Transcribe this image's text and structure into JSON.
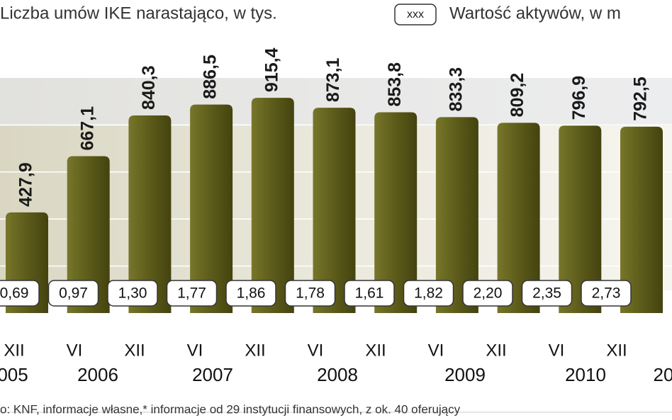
{
  "chart_data": {
    "type": "bar",
    "title": "Liczba umów IKE narastająco, w tys.",
    "legend_sample": "xxx",
    "legend_label": "Wartość aktywów, w m",
    "categories": [
      "XII",
      "VI",
      "XII",
      "VI",
      "XII",
      "VI",
      "XII",
      "VI",
      "XII",
      "VI",
      "XII"
    ],
    "values": [
      427.9,
      667.1,
      840.3,
      886.5,
      915.4,
      873.1,
      853.8,
      833.3,
      809.2,
      796.9,
      792.5
    ],
    "value_labels": [
      "427,9",
      "667,1",
      "840,3",
      "886,5",
      "915,4",
      "873,1",
      "853,8",
      "833,3",
      "809,2",
      "796,9",
      "792,5"
    ],
    "color": "#5c5b1a",
    "ylim": [
      0,
      1000
    ],
    "yticks": [
      200,
      400,
      600,
      800
    ],
    "grid": true,
    "asset_values": [
      0.69,
      0.97,
      1.3,
      1.77,
      1.86,
      1.78,
      1.61,
      1.82,
      2.2,
      2.35,
      2.73
    ],
    "asset_labels": [
      "0,69",
      "0,97",
      "1,30",
      "1,77",
      "1,86",
      "1,78",
      "1,61",
      "1,82",
      "2,20",
      "2,35",
      "2,73"
    ],
    "years": [
      "005",
      "2006",
      "2007",
      "2008",
      "2009",
      "2010",
      "20"
    ],
    "footnote": "o: KNF, informacje własne,* informacje od 29 instytucji finansowych, z ok. 40 oferujący"
  }
}
